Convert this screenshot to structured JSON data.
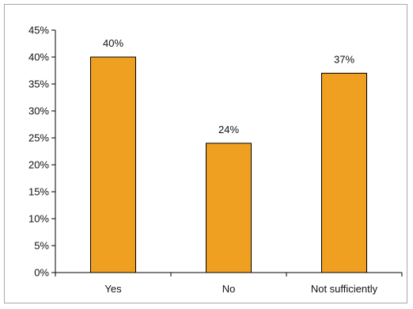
{
  "chart_data": {
    "type": "bar",
    "categories": [
      "Yes",
      "No",
      "Not sufficiently"
    ],
    "values": [
      40,
      24,
      37
    ],
    "data_labels": [
      "40%",
      "24%",
      "37%"
    ],
    "title": "",
    "xlabel": "",
    "ylabel": "",
    "ylim": [
      0,
      45
    ],
    "ytick_step": 5,
    "ytick_format": "percent",
    "grid": false,
    "legend": "none",
    "bar_color": "#f0a020",
    "bar_edge_color": "#000000"
  }
}
